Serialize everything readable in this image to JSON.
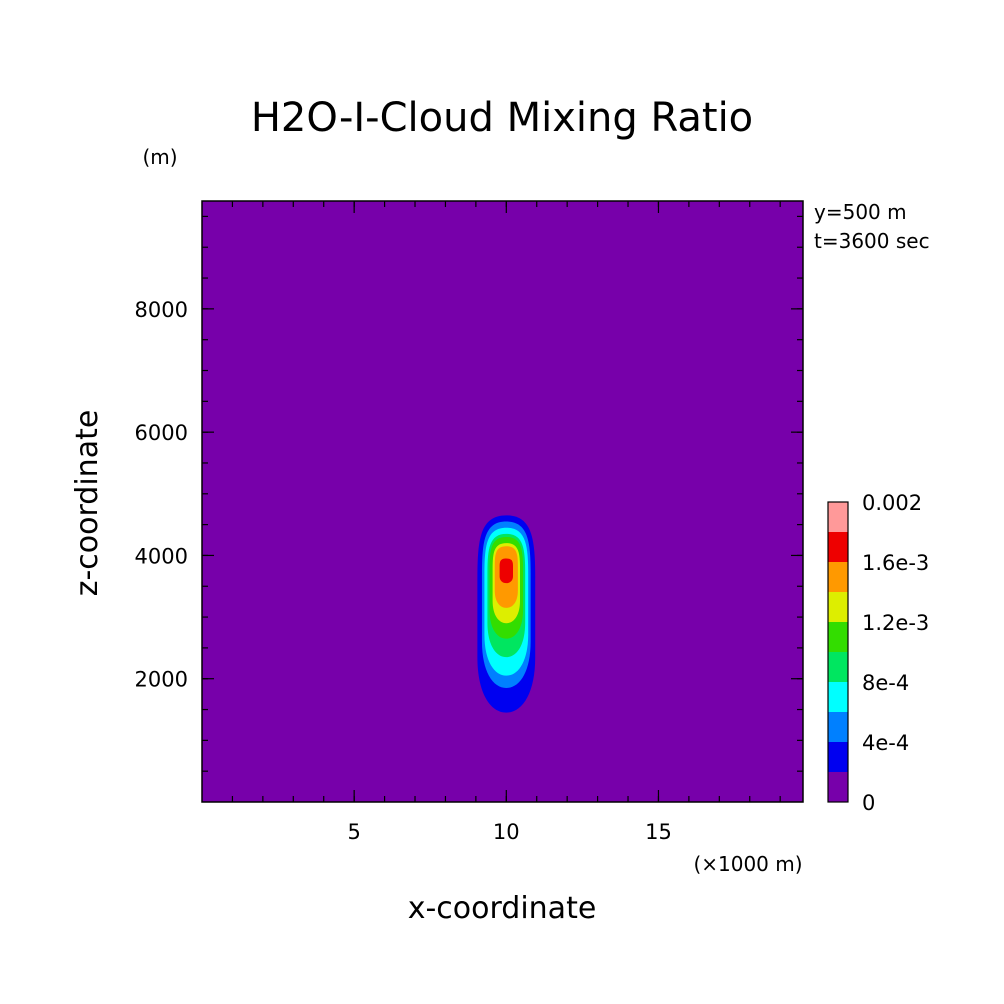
{
  "chart_data": {
    "type": "contour",
    "title": "H2O-I-Cloud Mixing Ratio",
    "xlabel": "x-coordinate",
    "ylabel": "z-coordinate",
    "x_unit": "(×1000 m)",
    "y_unit": "(m)",
    "annotations": [
      "y=500 m",
      "t=3600 sec"
    ],
    "xlim": [
      0,
      19.75
    ],
    "ylim": [
      0,
      9750
    ],
    "x_ticks": [
      5,
      10,
      15
    ],
    "x_tick_labels": [
      "5",
      "10",
      "15"
    ],
    "y_ticks": [
      2000,
      4000,
      6000,
      8000
    ],
    "y_tick_labels": [
      "2000",
      "4000",
      "6000",
      "8000"
    ],
    "x_minor_step": 1,
    "y_minor_step": 500,
    "grid": false,
    "levels": [
      0,
      0.0002,
      0.0004,
      0.0006,
      0.0008,
      0.001,
      0.0012,
      0.0014,
      0.0016,
      0.0018,
      0.002
    ],
    "level_colors": [
      "#7700aa",
      "#0000f0",
      "#0080ff",
      "#00ffff",
      "#00e660",
      "#33dd00",
      "#ddee00",
      "#ff9900",
      "#ee0000",
      "#ff9999"
    ],
    "colorbar_labels": [
      {
        "value": 0,
        "label": "0"
      },
      {
        "value": 0.0004,
        "label": "4e-4"
      },
      {
        "value": 0.0008,
        "label": "8e-4"
      },
      {
        "value": 0.0012,
        "label": "1.2e-3"
      },
      {
        "value": 0.0016,
        "label": "1.6e-3"
      },
      {
        "value": 0.002,
        "label": "0.002"
      }
    ],
    "field_peak": {
      "x": 10,
      "z": 3750,
      "value": 0.0017
    },
    "regions": [
      {
        "level_min": 0.0002,
        "x_halfwidth": 0.95,
        "z_bottom": 1450,
        "z_top": 4650
      },
      {
        "level_min": 0.0004,
        "x_halfwidth": 0.8,
        "z_bottom": 1850,
        "z_top": 4550
      },
      {
        "level_min": 0.0006,
        "x_halfwidth": 0.72,
        "z_bottom": 2050,
        "z_top": 4450
      },
      {
        "level_min": 0.0008,
        "x_halfwidth": 0.62,
        "z_bottom": 2350,
        "z_top": 4350
      },
      {
        "level_min": 0.001,
        "x_halfwidth": 0.55,
        "z_bottom": 2650,
        "z_top": 4300
      },
      {
        "level_min": 0.0012,
        "x_halfwidth": 0.45,
        "z_bottom": 2900,
        "z_top": 4200
      },
      {
        "level_min": 0.0014,
        "x_halfwidth": 0.38,
        "z_bottom": 3150,
        "z_top": 4150
      },
      {
        "level_min": 0.0016,
        "x_halfwidth": 0.22,
        "z_bottom": 3550,
        "z_top": 3950
      }
    ]
  }
}
